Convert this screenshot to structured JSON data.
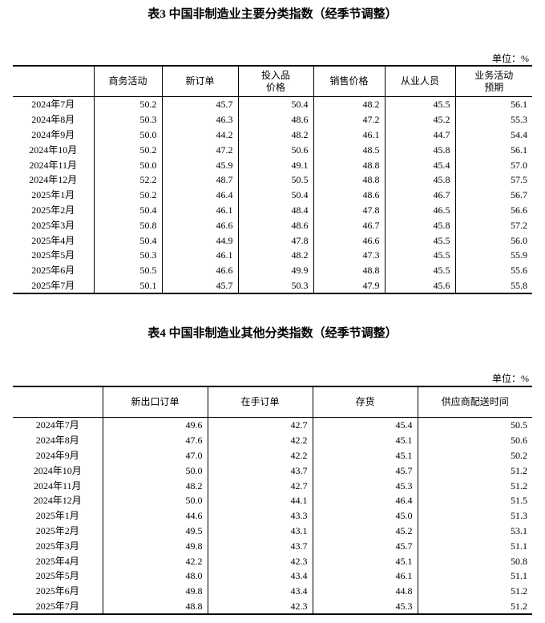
{
  "table3": {
    "title": "表3 中国非制造业主要分类指数（经季节调整）",
    "unit": "单位：%",
    "headers": [
      "",
      "商务活动",
      "新订单",
      "投入品\n价格",
      "销售价格",
      "从业人员",
      "业务活动\n预期"
    ],
    "rows": [
      [
        "2024年7月",
        "50.2",
        "45.7",
        "50.4",
        "48.2",
        "45.5",
        "56.1"
      ],
      [
        "2024年8月",
        "50.3",
        "46.3",
        "48.6",
        "47.2",
        "45.2",
        "55.3"
      ],
      [
        "2024年9月",
        "50.0",
        "44.2",
        "48.2",
        "46.1",
        "44.7",
        "54.4"
      ],
      [
        "2024年10月",
        "50.2",
        "47.2",
        "50.6",
        "48.5",
        "45.8",
        "56.1"
      ],
      [
        "2024年11月",
        "50.0",
        "45.9",
        "49.1",
        "48.8",
        "45.4",
        "57.0"
      ],
      [
        "2024年12月",
        "52.2",
        "48.7",
        "50.5",
        "48.8",
        "45.8",
        "57.5"
      ],
      [
        "2025年1月",
        "50.2",
        "46.4",
        "50.4",
        "48.6",
        "46.7",
        "56.7"
      ],
      [
        "2025年2月",
        "50.4",
        "46.1",
        "48.4",
        "47.8",
        "46.5",
        "56.6"
      ],
      [
        "2025年3月",
        "50.8",
        "46.6",
        "48.6",
        "46.7",
        "45.8",
        "57.2"
      ],
      [
        "2025年4月",
        "50.4",
        "44.9",
        "47.8",
        "46.6",
        "45.5",
        "56.0"
      ],
      [
        "2025年5月",
        "50.3",
        "46.1",
        "48.2",
        "47.3",
        "45.5",
        "55.9"
      ],
      [
        "2025年6月",
        "50.5",
        "46.6",
        "49.9",
        "48.8",
        "45.5",
        "55.6"
      ],
      [
        "2025年7月",
        "50.1",
        "45.7",
        "50.3",
        "47.9",
        "45.6",
        "55.8"
      ]
    ]
  },
  "table4": {
    "title": "表4 中国非制造业其他分类指数（经季节调整）",
    "unit": "单位：%",
    "headers": [
      "",
      "新出口订单",
      "在手订单",
      "存货",
      "供应商配送时间"
    ],
    "rows": [
      [
        "2024年7月",
        "49.6",
        "42.7",
        "45.4",
        "50.5"
      ],
      [
        "2024年8月",
        "47.6",
        "42.2",
        "45.1",
        "50.6"
      ],
      [
        "2024年9月",
        "47.0",
        "42.2",
        "45.1",
        "50.2"
      ],
      [
        "2024年10月",
        "50.0",
        "43.7",
        "45.7",
        "51.2"
      ],
      [
        "2024年11月",
        "48.2",
        "42.7",
        "45.3",
        "51.2"
      ],
      [
        "2024年12月",
        "50.0",
        "44.1",
        "46.4",
        "51.5"
      ],
      [
        "2025年1月",
        "44.6",
        "43.3",
        "45.0",
        "51.3"
      ],
      [
        "2025年2月",
        "49.5",
        "43.1",
        "45.2",
        "53.1"
      ],
      [
        "2025年3月",
        "49.8",
        "43.7",
        "45.7",
        "51.1"
      ],
      [
        "2025年4月",
        "42.2",
        "42.3",
        "45.1",
        "50.8"
      ],
      [
        "2025年5月",
        "48.0",
        "43.4",
        "46.1",
        "51.1"
      ],
      [
        "2025年6月",
        "49.8",
        "43.4",
        "44.8",
        "51.2"
      ],
      [
        "2025年7月",
        "48.8",
        "42.3",
        "45.3",
        "51.2"
      ]
    ]
  }
}
